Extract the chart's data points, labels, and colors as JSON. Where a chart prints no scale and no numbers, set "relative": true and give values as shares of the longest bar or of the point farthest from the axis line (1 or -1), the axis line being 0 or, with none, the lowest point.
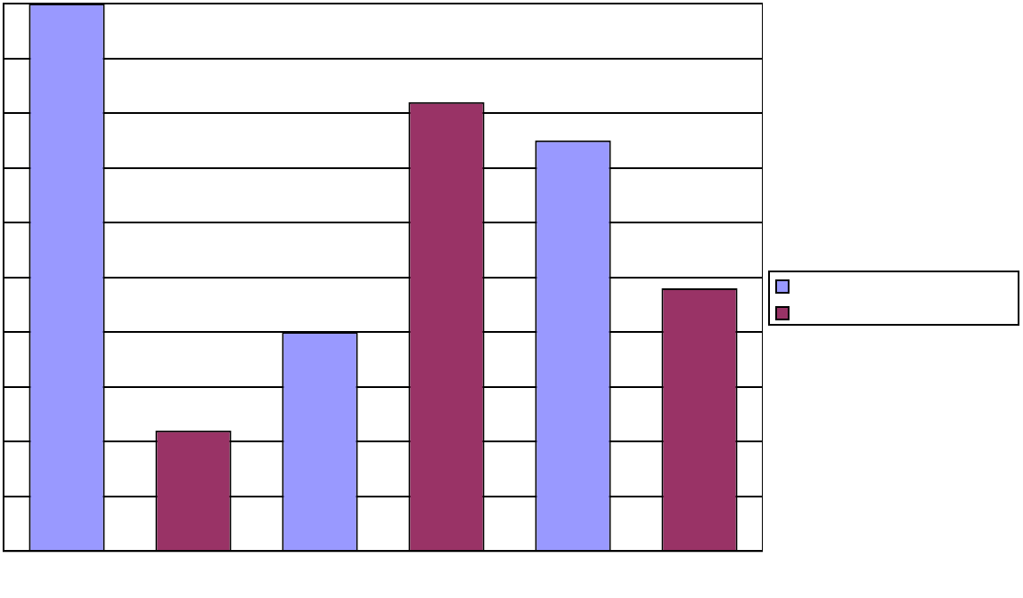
{
  "chart_data": {
    "type": "bar",
    "relative": true,
    "categories": [
      null,
      null,
      null
    ],
    "series": [
      {
        "color": "#9999ff",
        "values": [
          1,
          0.4,
          0.75
        ]
      },
      {
        "color": "#993366",
        "values": [
          0.22,
          0.82,
          0.48
        ]
      }
    ],
    "grid": "y"
  }
}
